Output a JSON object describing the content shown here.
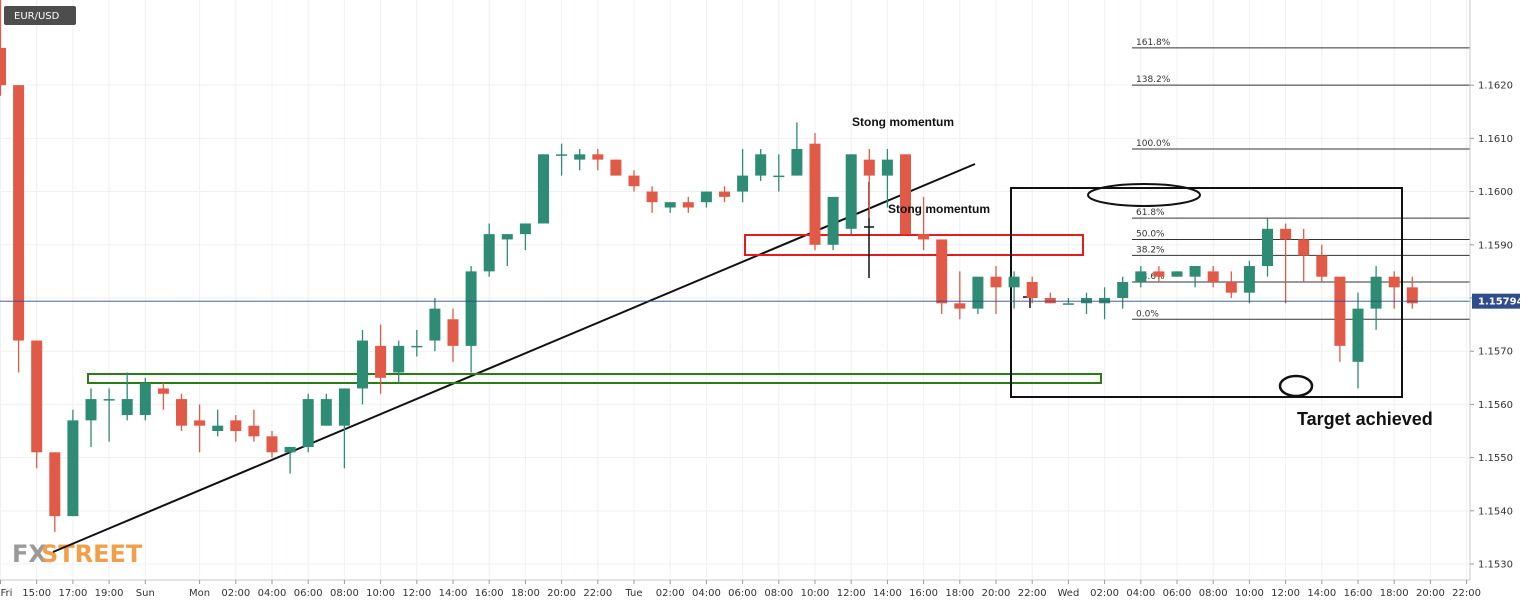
{
  "symbol": "EUR/USD",
  "current_price": "1.15794",
  "logo": {
    "part1": "FX",
    "part2": "STREET"
  },
  "colors": {
    "bull": "#2e8b74",
    "bear": "#e05a47",
    "grid": "#eef0f3",
    "support": "#2a7d12",
    "resistance": "#e61b1b",
    "price_tag": "#2f4d8a",
    "symbol_bg": "#4d4d4d"
  },
  "annotations": {
    "momentum1": "Stong momentum",
    "momentum2": "Stong momentum",
    "target": "Target achieved"
  },
  "chart_data": {
    "type": "candlestick",
    "title": "EUR/USD",
    "timeframe_hours": 1,
    "ylim": [
      1.1527,
      1.1636
    ],
    "y_ticks": [
      "1.1530",
      "1.1540",
      "1.1550",
      "1.1560",
      "1.1570",
      "1.1580",
      "1.1590",
      "1.1600",
      "1.1610",
      "1.1620"
    ],
    "x_ticks": [
      {
        "label": "Fri",
        "index": 0
      },
      {
        "label": "15:00",
        "index": 2
      },
      {
        "label": "17:00",
        "index": 4
      },
      {
        "label": "19:00",
        "index": 6
      },
      {
        "label": "Sun",
        "index": 8
      },
      {
        "label": "Mon",
        "index": 11
      },
      {
        "label": "02:00",
        "index": 13
      },
      {
        "label": "04:00",
        "index": 15
      },
      {
        "label": "06:00",
        "index": 17
      },
      {
        "label": "08:00",
        "index": 19
      },
      {
        "label": "10:00",
        "index": 21
      },
      {
        "label": "12:00",
        "index": 23
      },
      {
        "label": "14:00",
        "index": 25
      },
      {
        "label": "16:00",
        "index": 27
      },
      {
        "label": "18:00",
        "index": 29
      },
      {
        "label": "20:00",
        "index": 31
      },
      {
        "label": "22:00",
        "index": 33
      },
      {
        "label": "Tue",
        "index": 35
      },
      {
        "label": "02:00",
        "index": 37
      },
      {
        "label": "04:00",
        "index": 39
      },
      {
        "label": "06:00",
        "index": 41
      },
      {
        "label": "08:00",
        "index": 43
      },
      {
        "label": "10:00",
        "index": 45
      },
      {
        "label": "12:00",
        "index": 47
      },
      {
        "label": "14:00",
        "index": 49
      },
      {
        "label": "16:00",
        "index": 51
      },
      {
        "label": "18:00",
        "index": 53
      },
      {
        "label": "20:00",
        "index": 55
      },
      {
        "label": "22:00",
        "index": 57
      },
      {
        "label": "Wed",
        "index": 59
      },
      {
        "label": "02:00",
        "index": 61
      },
      {
        "label": "04:00",
        "index": 63
      },
      {
        "label": "06:00",
        "index": 65
      },
      {
        "label": "08:00",
        "index": 67
      },
      {
        "label": "10:00",
        "index": 69
      },
      {
        "label": "12:00",
        "index": 71
      },
      {
        "label": "14:00",
        "index": 73
      },
      {
        "label": "16:00",
        "index": 75
      },
      {
        "label": "18:00",
        "index": 77
      },
      {
        "label": "20:00",
        "index": 79
      },
      {
        "label": "22:00",
        "index": 81
      }
    ],
    "candles": [
      [
        1.1627,
        1.164,
        1.1618,
        1.162
      ],
      [
        1.162,
        1.162,
        1.1566,
        1.1572
      ],
      [
        1.1572,
        1.1572,
        1.1548,
        1.1551
      ],
      [
        1.1551,
        1.1551,
        1.1536,
        1.1539
      ],
      [
        1.1539,
        1.1559,
        1.1539,
        1.1557
      ],
      [
        1.1557,
        1.1563,
        1.1552,
        1.1561
      ],
      [
        1.1561,
        1.1563,
        1.1553,
        1.1561
      ],
      [
        1.1558,
        1.1566,
        1.1557,
        1.1561
      ],
      [
        1.1558,
        1.1565,
        1.1557,
        1.1564
      ],
      [
        1.1563,
        1.1564,
        1.1559,
        1.1562
      ],
      [
        1.1561,
        1.1562,
        1.1555,
        1.1556
      ],
      [
        1.1557,
        1.156,
        1.1551,
        1.1556
      ],
      [
        1.1555,
        1.1559,
        1.1554,
        1.1556
      ],
      [
        1.1557,
        1.1558,
        1.1553,
        1.1555
      ],
      [
        1.1556,
        1.1559,
        1.1553,
        1.1554
      ],
      [
        1.1554,
        1.1555,
        1.155,
        1.1551
      ],
      [
        1.1551,
        1.1552,
        1.1547,
        1.1552
      ],
      [
        1.1552,
        1.1562,
        1.1551,
        1.1561
      ],
      [
        1.1556,
        1.1562,
        1.1556,
        1.1561
      ],
      [
        1.1556,
        1.1563,
        1.1548,
        1.1563
      ],
      [
        1.1563,
        1.1574,
        1.156,
        1.1572
      ],
      [
        1.1571,
        1.1575,
        1.1562,
        1.1565
      ],
      [
        1.1566,
        1.1572,
        1.1564,
        1.1571
      ],
      [
        1.1571,
        1.1574,
        1.1569,
        1.1571
      ],
      [
        1.1572,
        1.158,
        1.157,
        1.1578
      ],
      [
        1.1576,
        1.1578,
        1.1568,
        1.1571
      ],
      [
        1.1571,
        1.1586,
        1.1566,
        1.1585
      ],
      [
        1.1585,
        1.1594,
        1.1584,
        1.1592
      ],
      [
        1.1591,
        1.1592,
        1.1586,
        1.1592
      ],
      [
        1.1592,
        1.1593,
        1.1589,
        1.1594
      ],
      [
        1.1594,
        1.1607,
        1.1594,
        1.1607
      ],
      [
        1.1607,
        1.1609,
        1.1603,
        1.1607
      ],
      [
        1.1606,
        1.1608,
        1.1604,
        1.1607
      ],
      [
        1.1607,
        1.1608,
        1.1604,
        1.1606
      ],
      [
        1.1606,
        1.1606,
        1.1603,
        1.1603
      ],
      [
        1.1603,
        1.1604,
        1.16,
        1.1601
      ],
      [
        1.16,
        1.1601,
        1.1596,
        1.1598
      ],
      [
        1.1597,
        1.1598,
        1.1596,
        1.1598
      ],
      [
        1.1598,
        1.1599,
        1.1596,
        1.1597
      ],
      [
        1.1598,
        1.16,
        1.1597,
        1.16
      ],
      [
        1.16,
        1.1601,
        1.1598,
        1.1599
      ],
      [
        1.16,
        1.1608,
        1.1598,
        1.1603
      ],
      [
        1.1603,
        1.1608,
        1.1602,
        1.1607
      ],
      [
        1.1603,
        1.1607,
        1.16,
        1.1603
      ],
      [
        1.1603,
        1.1613,
        1.1603,
        1.1608
      ],
      [
        1.1609,
        1.1611,
        1.1589,
        1.159
      ],
      [
        1.159,
        1.1599,
        1.1589,
        1.1599
      ],
      [
        1.1593,
        1.1607,
        1.1592,
        1.1607
      ],
      [
        1.1606,
        1.1608,
        1.1595,
        1.1603
      ],
      [
        1.1603,
        1.1608,
        1.1597,
        1.1606
      ],
      [
        1.1607,
        1.1607,
        1.1592,
        1.1592
      ],
      [
        1.1592,
        1.1599,
        1.1589,
        1.1591
      ],
      [
        1.1591,
        1.1591,
        1.1577,
        1.1579
      ],
      [
        1.1579,
        1.1585,
        1.1576,
        1.1578
      ],
      [
        1.1578,
        1.1584,
        1.1577,
        1.1584
      ],
      [
        1.1584,
        1.1586,
        1.1577,
        1.1582
      ],
      [
        1.1582,
        1.1585,
        1.1578,
        1.1584
      ],
      [
        1.1583,
        1.1584,
        1.1579,
        1.158
      ],
      [
        1.158,
        1.1581,
        1.1579,
        1.1579
      ],
      [
        1.1579,
        1.158,
        1.1579,
        1.1579
      ],
      [
        1.1579,
        1.1581,
        1.1577,
        1.158
      ],
      [
        1.1579,
        1.1582,
        1.1576,
        1.158
      ],
      [
        1.158,
        1.1584,
        1.1578,
        1.1583
      ],
      [
        1.1583,
        1.1586,
        1.1582,
        1.1585
      ],
      [
        1.1585,
        1.1586,
        1.1583,
        1.1584
      ],
      [
        1.1584,
        1.1585,
        1.1584,
        1.1585
      ],
      [
        1.1584,
        1.1586,
        1.1582,
        1.1586
      ],
      [
        1.1585,
        1.1586,
        1.1582,
        1.1583
      ],
      [
        1.1583,
        1.1585,
        1.158,
        1.1581
      ],
      [
        1.1581,
        1.1587,
        1.1579,
        1.1586
      ],
      [
        1.1586,
        1.1595,
        1.1584,
        1.1593
      ],
      [
        1.1593,
        1.1594,
        1.1579,
        1.1591
      ],
      [
        1.1591,
        1.1593,
        1.1583,
        1.1588
      ],
      [
        1.1588,
        1.159,
        1.1583,
        1.1584
      ],
      [
        1.1584,
        1.1584,
        1.1568,
        1.1571
      ],
      [
        1.1568,
        1.1581,
        1.1563,
        1.1578
      ],
      [
        1.1578,
        1.1586,
        1.1574,
        1.1584
      ],
      [
        1.1584,
        1.1585,
        1.1578,
        1.1582
      ],
      [
        1.1582,
        1.1584,
        1.1578,
        1.1579
      ]
    ],
    "fibonacci": [
      {
        "label": "161.8%",
        "price": 1.1627
      },
      {
        "label": "138.2%",
        "price": 1.162
      },
      {
        "label": "100.0%",
        "price": 1.1608
      },
      {
        "label": "61.8%",
        "price": 1.1595
      },
      {
        "label": "50.0%",
        "price": 1.1591
      },
      {
        "label": "38.2%",
        "price": 1.1588
      },
      {
        "label": "23.6%",
        "price": 1.1583
      },
      {
        "label": "0.0%",
        "price": 1.1576
      }
    ],
    "annotations": [
      {
        "text": "Stong momentum",
        "index": 47,
        "price": 1.1609
      },
      {
        "text": "Stong momentum",
        "index": 49,
        "price": 1.1593
      },
      {
        "text": "Target achieved",
        "index": 72,
        "price": 1.1559
      }
    ]
  }
}
